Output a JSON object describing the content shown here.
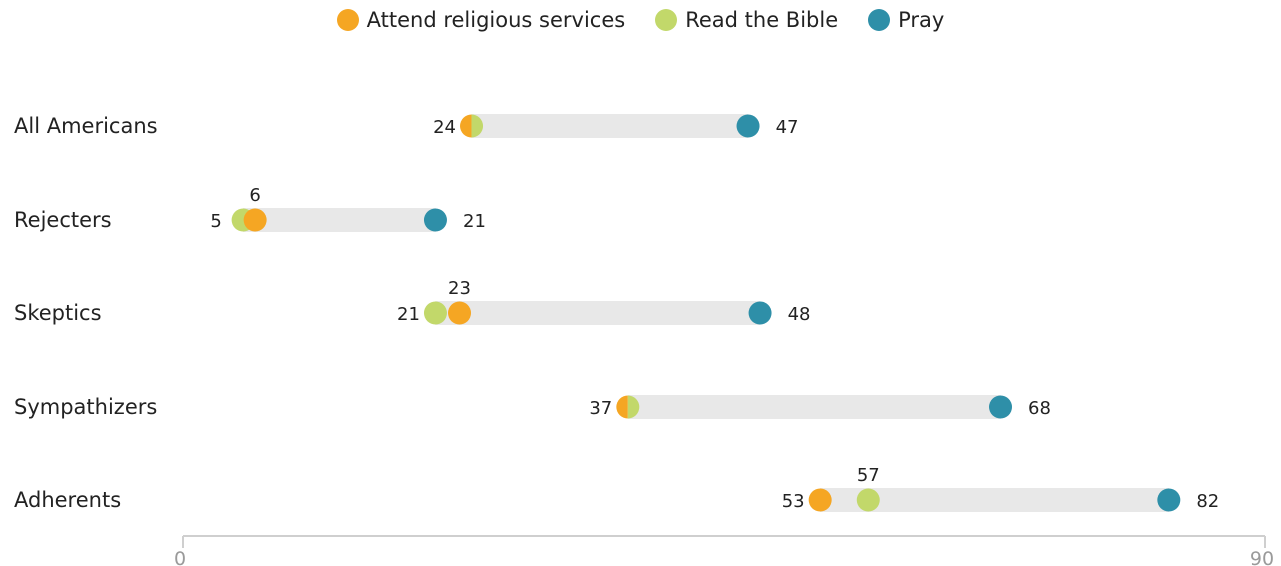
{
  "colors": {
    "attend": "#f5a623",
    "bible": "#c2d86a",
    "pray": "#2e8fa8",
    "bar": "#e8e8e8",
    "axis": "#cfcfcf"
  },
  "legend": [
    {
      "key": "attend",
      "label": "Attend religious services",
      "icon": "orange-dot-icon"
    },
    {
      "key": "bible",
      "label": "Read the Bible",
      "icon": "green-dot-icon"
    },
    {
      "key": "pray",
      "label": "Pray",
      "icon": "teal-dot-icon"
    }
  ],
  "chart_data": {
    "type": "dot-range",
    "xlim": [
      0,
      90
    ],
    "ticks": [
      "0",
      "90"
    ],
    "categories": [
      "All Americans",
      "Rejecters",
      "Skeptics",
      "Sympathizers",
      "Adherents"
    ],
    "series": [
      {
        "name": "Attend religious services",
        "key": "attend",
        "values": [
          24,
          6,
          23,
          37,
          53
        ]
      },
      {
        "name": "Read the Bible",
        "key": "bible",
        "values": [
          24,
          5,
          21,
          37,
          57
        ]
      },
      {
        "name": "Pray",
        "key": "pray",
        "values": [
          47,
          21,
          48,
          68,
          82
        ]
      }
    ],
    "labels": [
      {
        "category": "All Americans",
        "min": "24",
        "max": "47"
      },
      {
        "category": "Rejecters",
        "min": "5",
        "above": "6",
        "max": "21"
      },
      {
        "category": "Skeptics",
        "min": "21",
        "above": "23",
        "max": "48"
      },
      {
        "category": "Sympathizers",
        "min": "37",
        "max": "68"
      },
      {
        "category": "Adherents",
        "min": "53",
        "above": "57",
        "max": "82"
      }
    ]
  }
}
